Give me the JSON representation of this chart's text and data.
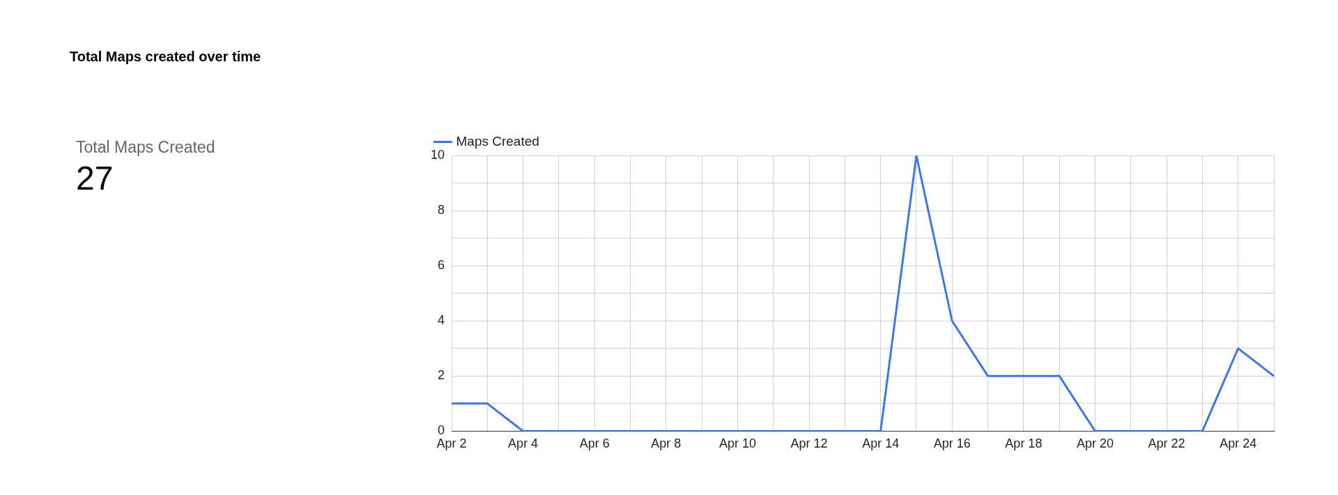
{
  "chart_data": [
    {
      "type": "other",
      "title": "Total Maps created over time",
      "annotations": [
        "Total Maps Created",
        "27"
      ]
    },
    {
      "type": "line",
      "categories": [
        "Apr 2",
        null,
        "Apr 4",
        null,
        "Apr 6",
        null,
        "Apr 8",
        null,
        "Apr 10",
        null,
        "Apr 12",
        null,
        "Apr 14",
        null,
        "Apr 16",
        null,
        "Apr 18",
        null,
        "Apr 20",
        null,
        "Apr 22",
        null,
        "Apr 24",
        null
      ],
      "series": [
        {
          "name": "Maps Created",
          "color": "#3b78e7",
          "values": [
            1,
            1,
            0,
            0,
            0,
            0,
            0,
            0,
            0,
            0,
            0,
            0,
            0,
            10,
            4,
            2,
            2,
            2,
            0,
            0,
            0,
            0,
            3,
            2
          ]
        }
      ],
      "ylim": [
        0,
        10
      ],
      "yticks": [
        0,
        {
          "value": 1,
          "label": null
        },
        2,
        {
          "value": 3,
          "label": null
        },
        4,
        {
          "value": 5,
          "label": null
        },
        6,
        {
          "value": 7,
          "label": null
        },
        8,
        {
          "value": 9,
          "label": null
        },
        10
      ],
      "grid": true,
      "legend": "top left",
      "marker": "none",
      "line_style": "solid"
    }
  ]
}
